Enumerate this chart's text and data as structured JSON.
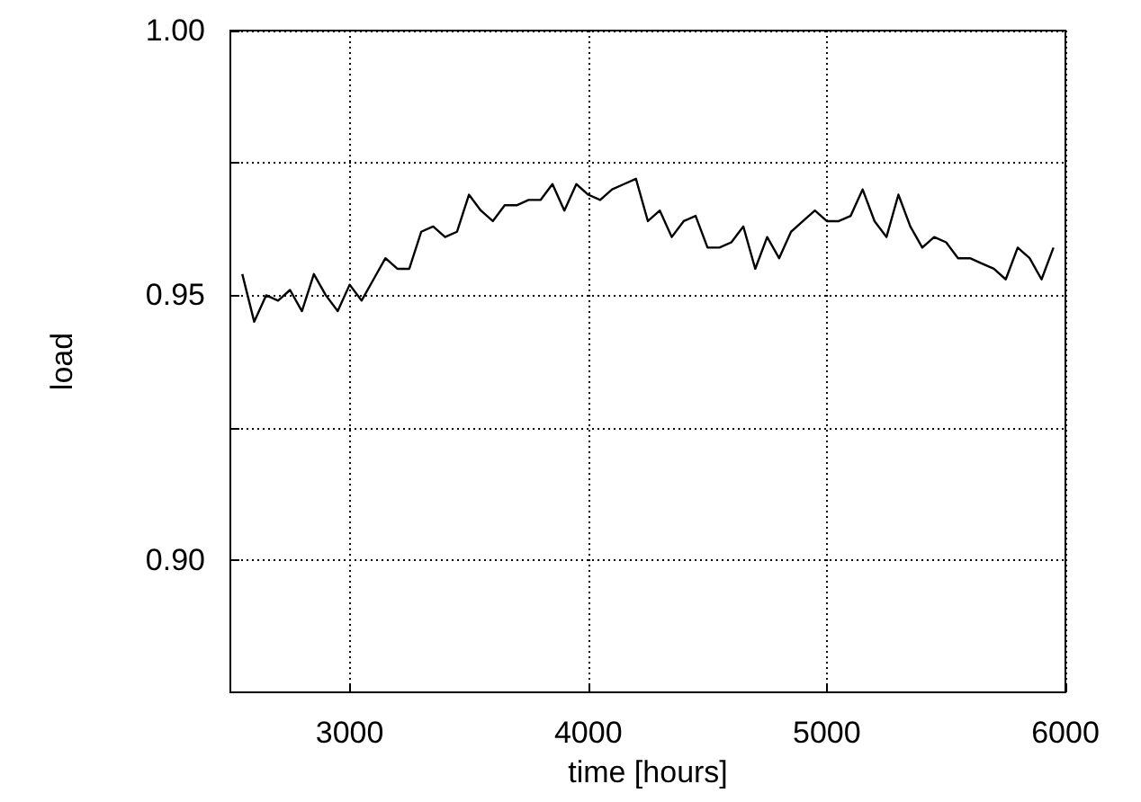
{
  "chart_data": {
    "type": "line",
    "xlabel": "time [hours]",
    "ylabel": "load",
    "x": [
      2550,
      2600,
      2650,
      2700,
      2750,
      2800,
      2850,
      2900,
      2950,
      3000,
      3050,
      3100,
      3150,
      3200,
      3250,
      3300,
      3350,
      3400,
      3450,
      3500,
      3550,
      3600,
      3650,
      3700,
      3750,
      3800,
      3850,
      3900,
      3950,
      4000,
      4050,
      4100,
      4150,
      4200,
      4250,
      4300,
      4350,
      4400,
      4450,
      4500,
      4550,
      4600,
      4650,
      4700,
      4750,
      4800,
      4850,
      4900,
      4950,
      5000,
      5050,
      5100,
      5150,
      5200,
      5250,
      5300,
      5350,
      5400,
      5450,
      5500,
      5550,
      5600,
      5650,
      5700,
      5750,
      5800,
      5850,
      5900,
      5950
    ],
    "series": [
      {
        "color": "#000000",
        "values": [
          0.954,
          0.945,
          0.95,
          0.949,
          0.951,
          0.947,
          0.954,
          0.95,
          0.947,
          0.952,
          0.949,
          0.953,
          0.957,
          0.955,
          0.955,
          0.962,
          0.963,
          0.961,
          0.962,
          0.969,
          0.966,
          0.964,
          0.967,
          0.967,
          0.968,
          0.968,
          0.971,
          0.966,
          0.971,
          0.969,
          0.968,
          0.97,
          0.971,
          0.972,
          0.964,
          0.966,
          0.961,
          0.964,
          0.965,
          0.959,
          0.959,
          0.96,
          0.963,
          0.955,
          0.961,
          0.957,
          0.962,
          0.964,
          0.966,
          0.964,
          0.964,
          0.965,
          0.97,
          0.964,
          0.961,
          0.969,
          0.963,
          0.959,
          0.961,
          0.96,
          0.957,
          0.957,
          0.956,
          0.955,
          0.953,
          0.959,
          0.957,
          0.953,
          0.959
        ]
      }
    ],
    "xlim": [
      2500,
      6000
    ],
    "xticks": [
      3000,
      4000,
      5000,
      6000
    ],
    "ylim": [
      0.875,
      1.0
    ],
    "yticks": [
      {
        "value": 0.9,
        "label": "0.90"
      },
      {
        "value": 0.925,
        "label": null
      },
      {
        "value": 0.95,
        "label": "0.95"
      },
      {
        "value": 0.975,
        "label": null
      },
      {
        "value": 1.0,
        "label": "1.00"
      }
    ],
    "grid": true,
    "marker": "none",
    "line_style": "solid"
  }
}
